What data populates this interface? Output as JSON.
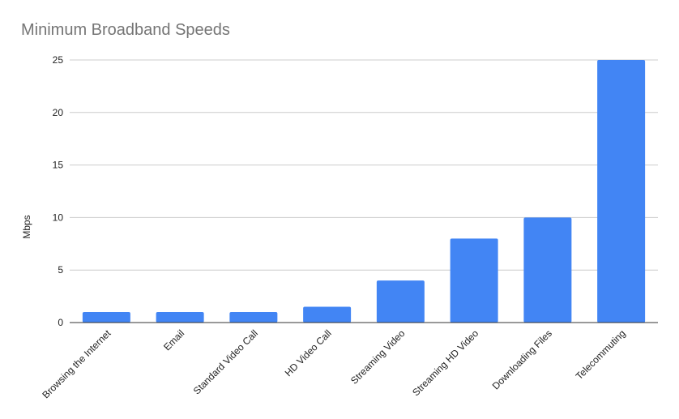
{
  "chart_data": {
    "type": "bar",
    "title": "Minimum Broadband Speeds",
    "xlabel": "",
    "ylabel": "Mbps",
    "categories": [
      "Browsing the Internet",
      "Email",
      "Standard Video Call",
      "HD Video Call",
      "Streaming Video",
      "Streaming HD Video",
      "Downloading Files",
      "Telecommuting"
    ],
    "series": [
      {
        "values": [
          1,
          1,
          1,
          1.5,
          4,
          8,
          10,
          25
        ]
      }
    ],
    "ylim": [
      0,
      25
    ],
    "yticks": [
      0,
      5,
      10,
      15,
      20,
      25
    ],
    "grid": true,
    "legend": "none",
    "colors": {
      "bar": "#4285f4",
      "grid": "#cccccc",
      "axis": "#333333",
      "title": "#757575",
      "text": "#222222"
    }
  }
}
